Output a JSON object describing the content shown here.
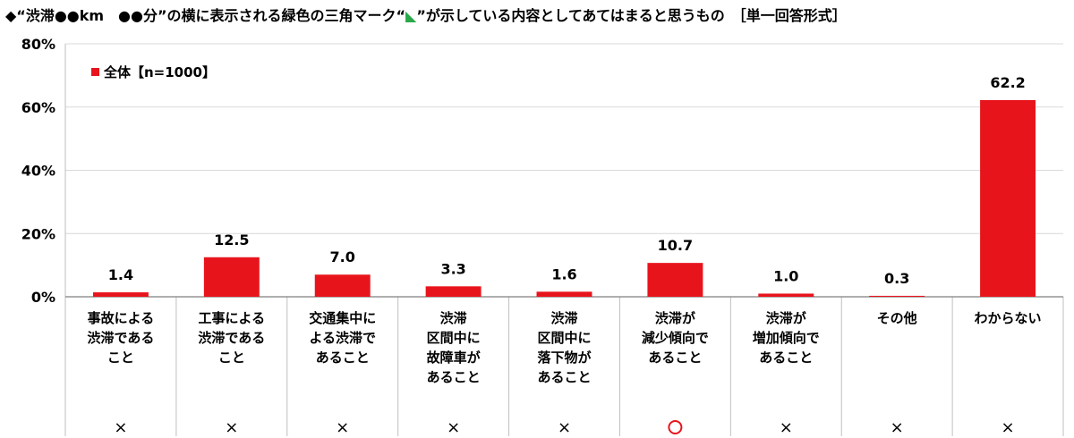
{
  "title": {
    "before": "◆“渋滞●●km　●●分”の横に表示される緑色の三角マーク“",
    "triangle": "◣",
    "after": "”が示している内容としてあてはまると思うもの　［単一回答形式］"
  },
  "colors": {
    "bar": "#e8141c",
    "grid": "#d9d9d9",
    "triangle": "#2aa84a",
    "circle": "#e8141c"
  },
  "chart_data": {
    "type": "bar",
    "ylim": [
      0,
      80
    ],
    "yticks": [
      "0%",
      "20%",
      "40%",
      "60%",
      "80%"
    ],
    "legend": {
      "label": "全体【n=1000】",
      "placement": "top-left"
    },
    "categories": [
      [
        "事故による",
        "渋滞である",
        "こと"
      ],
      [
        "工事による",
        "渋滞である",
        "こと"
      ],
      [
        "交通集中に",
        "よる渋滞で",
        "あること"
      ],
      [
        "渋滞",
        "区間中に",
        "故障車が",
        "あること"
      ],
      [
        "渋滞",
        "区間中に",
        "落下物が",
        "あること"
      ],
      [
        "渋滞が",
        "減少傾向で",
        "あること"
      ],
      [
        "渋滞が",
        "増加傾向で",
        "あること"
      ],
      [
        "その他"
      ],
      [
        "わからない"
      ]
    ],
    "series": [
      {
        "name": "全体【n=1000】",
        "values": [
          1.4,
          12.5,
          7.0,
          3.3,
          1.6,
          10.7,
          1.0,
          0.3,
          62.2
        ]
      }
    ],
    "value_labels": [
      "1.4",
      "12.5",
      "7.0",
      "3.3",
      "1.6",
      "10.7",
      "1.0",
      "0.3",
      "62.2"
    ],
    "marks": [
      "×",
      "×",
      "×",
      "×",
      "×",
      "○",
      "×",
      "×",
      "×"
    ]
  }
}
